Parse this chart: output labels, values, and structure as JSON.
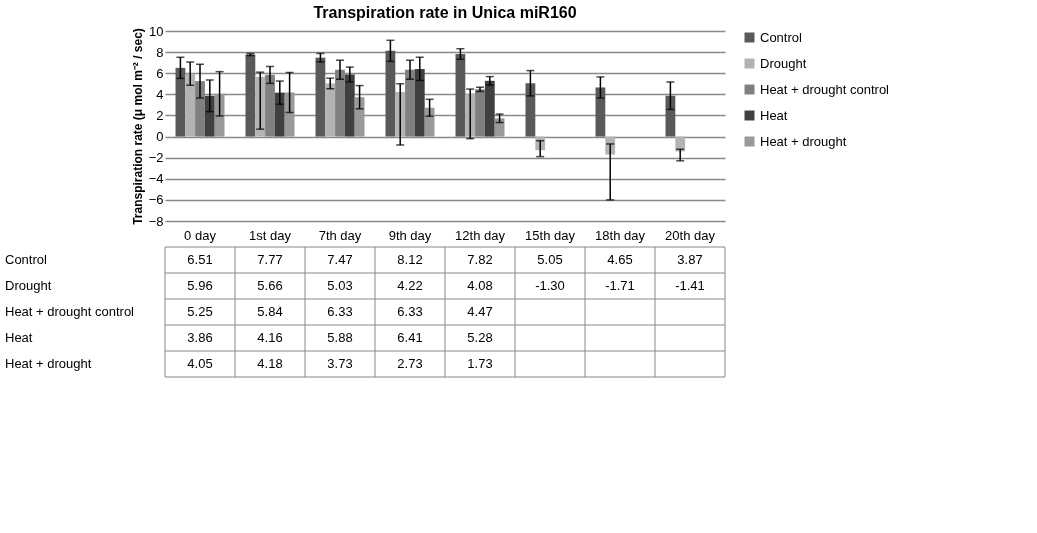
{
  "chart_data": {
    "type": "bar",
    "title": "Transpiration rate in Unica miR160",
    "ylabel": "Transpiration rate (μ mol m⁻² / sec)",
    "categories": [
      "0 day",
      "1st day",
      "7th day",
      "9th day",
      "12th day",
      "15th day",
      "18th day",
      "20th day"
    ],
    "series": [
      {
        "name": "Control",
        "color": "#595959",
        "values": [
          6.51,
          7.77,
          7.47,
          8.12,
          7.82,
          5.05,
          4.65,
          3.87
        ],
        "errors": [
          1.0,
          0.1,
          0.4,
          1.0,
          0.5,
          1.2,
          1.0,
          1.3
        ],
        "value_labels": [
          "6.51",
          "7.77",
          "7.47",
          "8.12",
          "7.82",
          "5.05",
          "4.65",
          "3.87"
        ]
      },
      {
        "name": "Drought",
        "color": "#b3b3b3",
        "values": [
          5.96,
          5.66,
          5.03,
          4.22,
          4.08,
          -1.3,
          -1.71,
          -1.41
        ],
        "errors": [
          1.1,
          [
            0.7,
            6.1
          ],
          0.5,
          [
            -0.8,
            5.0
          ],
          [
            -0.2,
            4.5
          ],
          [
            -1.9,
            -0.4
          ],
          [
            -6.0,
            -0.7
          ],
          [
            -2.3,
            -1.2
          ]
        ],
        "value_labels": [
          "5.96",
          "5.66",
          "5.03",
          "4.22",
          "4.08",
          "-1.30",
          "-1.71",
          "-1.41"
        ]
      },
      {
        "name": "Heat + drought control",
        "color": "#808080",
        "values": [
          5.25,
          5.84,
          6.33,
          6.33,
          4.47,
          null,
          null,
          null
        ],
        "errors": [
          1.6,
          0.8,
          0.9,
          0.9,
          0.2,
          null,
          null,
          null
        ],
        "value_labels": [
          "5.25",
          "5.84",
          "6.33",
          "6.33",
          "4.47",
          null,
          null,
          null
        ]
      },
      {
        "name": "Heat",
        "color": "#404040",
        "values": [
          3.86,
          4.16,
          5.88,
          6.41,
          5.28,
          null,
          null,
          null
        ],
        "errors": [
          1.5,
          1.1,
          0.7,
          1.1,
          0.4,
          null,
          null,
          null
        ],
        "value_labels": [
          "3.86",
          "4.16",
          "5.88",
          "6.41",
          "5.28",
          null,
          null,
          null
        ]
      },
      {
        "name": "Heat + drought",
        "color": "#999999",
        "values": [
          4.05,
          4.18,
          3.73,
          2.73,
          1.73,
          null,
          null,
          null
        ],
        "errors": [
          2.1,
          1.9,
          1.1,
          0.8,
          0.4,
          null,
          null,
          null
        ],
        "value_labels": [
          "4.05",
          "4.18",
          "3.73",
          "2.73",
          "1.73",
          null,
          null,
          null
        ]
      }
    ],
    "ylim": [
      -8,
      10
    ],
    "yticks": [
      -8,
      -6,
      -4,
      -2,
      0,
      2,
      4,
      6,
      8,
      10
    ],
    "grid": "y",
    "legend": "right"
  }
}
